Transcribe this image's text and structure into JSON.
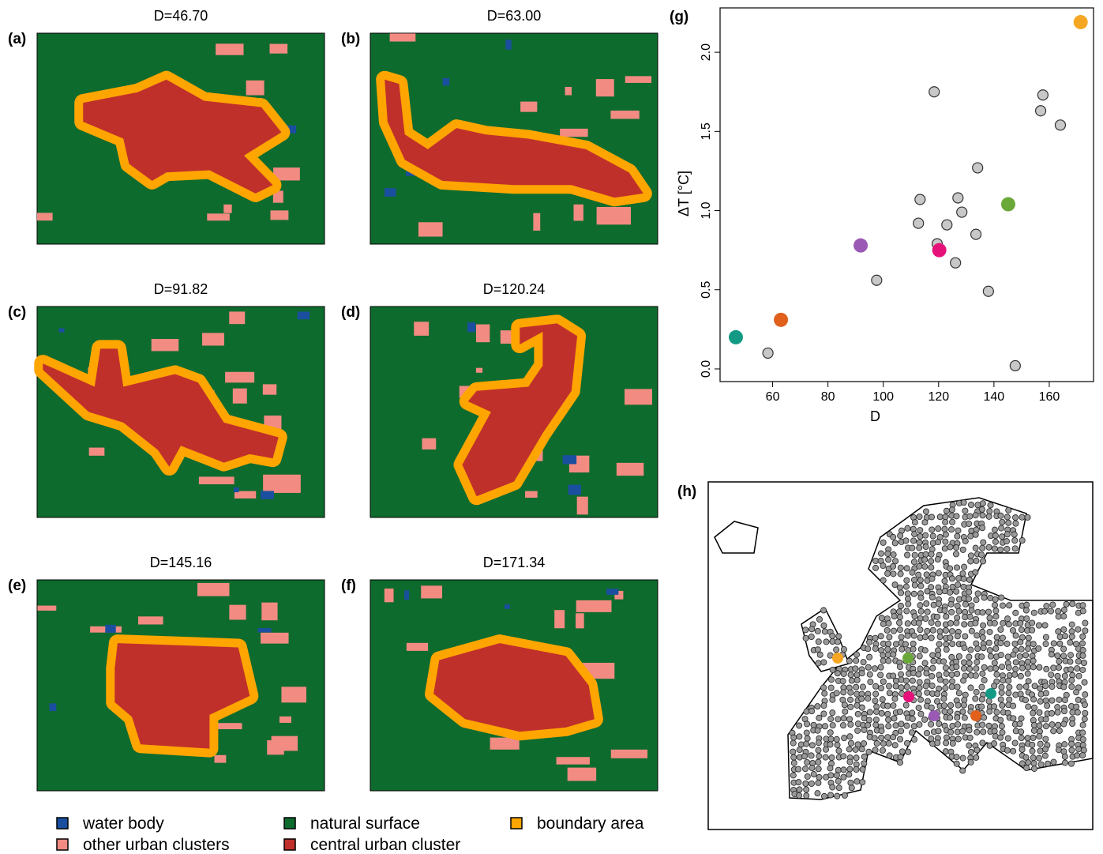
{
  "map_panels": [
    {
      "label": "(a)",
      "title": "D=46.70"
    },
    {
      "label": "(b)",
      "title": "D=63.00"
    },
    {
      "label": "(c)",
      "title": "D=91.82"
    },
    {
      "label": "(d)",
      "title": "D=120.24"
    },
    {
      "label": "(e)",
      "title": "D=145.16"
    },
    {
      "label": "(f)",
      "title": "D=171.34"
    }
  ],
  "legend": [
    {
      "label": "water body",
      "color": "#1a4fa0"
    },
    {
      "label": "other urban clusters",
      "color": "#f28b82"
    },
    {
      "label": "natural surface",
      "color": "#0e6b2e"
    },
    {
      "label": "central urban cluster",
      "color": "#c0302b"
    },
    {
      "label": "boundary area",
      "color": "#ffa500"
    }
  ],
  "chart_data": {
    "type": "scatter",
    "label": "(g)",
    "x_label": "D",
    "y_label": "ΔT [°C]",
    "xlim": [
      41,
      176
    ],
    "ylim": [
      -0.08,
      2.28
    ],
    "xticks": [
      60,
      80,
      100,
      120,
      140,
      160
    ],
    "yticks": [
      {
        "value": 0,
        "label": "0.0"
      },
      {
        "value": 0.5,
        "label": "0.5"
      },
      {
        "value": 1,
        "label": "1.0"
      },
      {
        "value": 1.5,
        "label": "1.5"
      },
      {
        "value": 2,
        "label": "2.0"
      }
    ],
    "series": [
      {
        "color": "#c8c8c8",
        "x": [
          58.3,
          97.6,
          113.3,
          112.7,
          118.4,
          119.5,
          123,
          127,
          128.4,
          126.1,
          134.1,
          133.5,
          138,
          147.7,
          156.9,
          157.7,
          164
        ],
        "values": [
          0.1,
          0.56,
          1.07,
          0.92,
          1.75,
          0.79,
          0.91,
          1.08,
          0.99,
          0.67,
          1.27,
          0.85,
          0.49,
          0.02,
          1.63,
          1.73,
          1.54
        ]
      },
      {
        "color": "#139a85",
        "x": [
          46.7
        ],
        "values": [
          0.2
        ]
      },
      {
        "color": "#e0601c",
        "x": [
          63.0
        ],
        "values": [
          0.31
        ]
      },
      {
        "color": "#9b59b6",
        "x": [
          91.82
        ],
        "values": [
          0.78
        ]
      },
      {
        "color": "#e6127a",
        "x": [
          120.24
        ],
        "values": [
          0.75
        ]
      },
      {
        "color": "#6aa83a",
        "x": [
          145.16
        ],
        "values": [
          1.04
        ]
      },
      {
        "color": "#f5a623",
        "x": [
          171.34
        ],
        "values": [
          2.19
        ]
      }
    ]
  },
  "map_label": "(h)"
}
